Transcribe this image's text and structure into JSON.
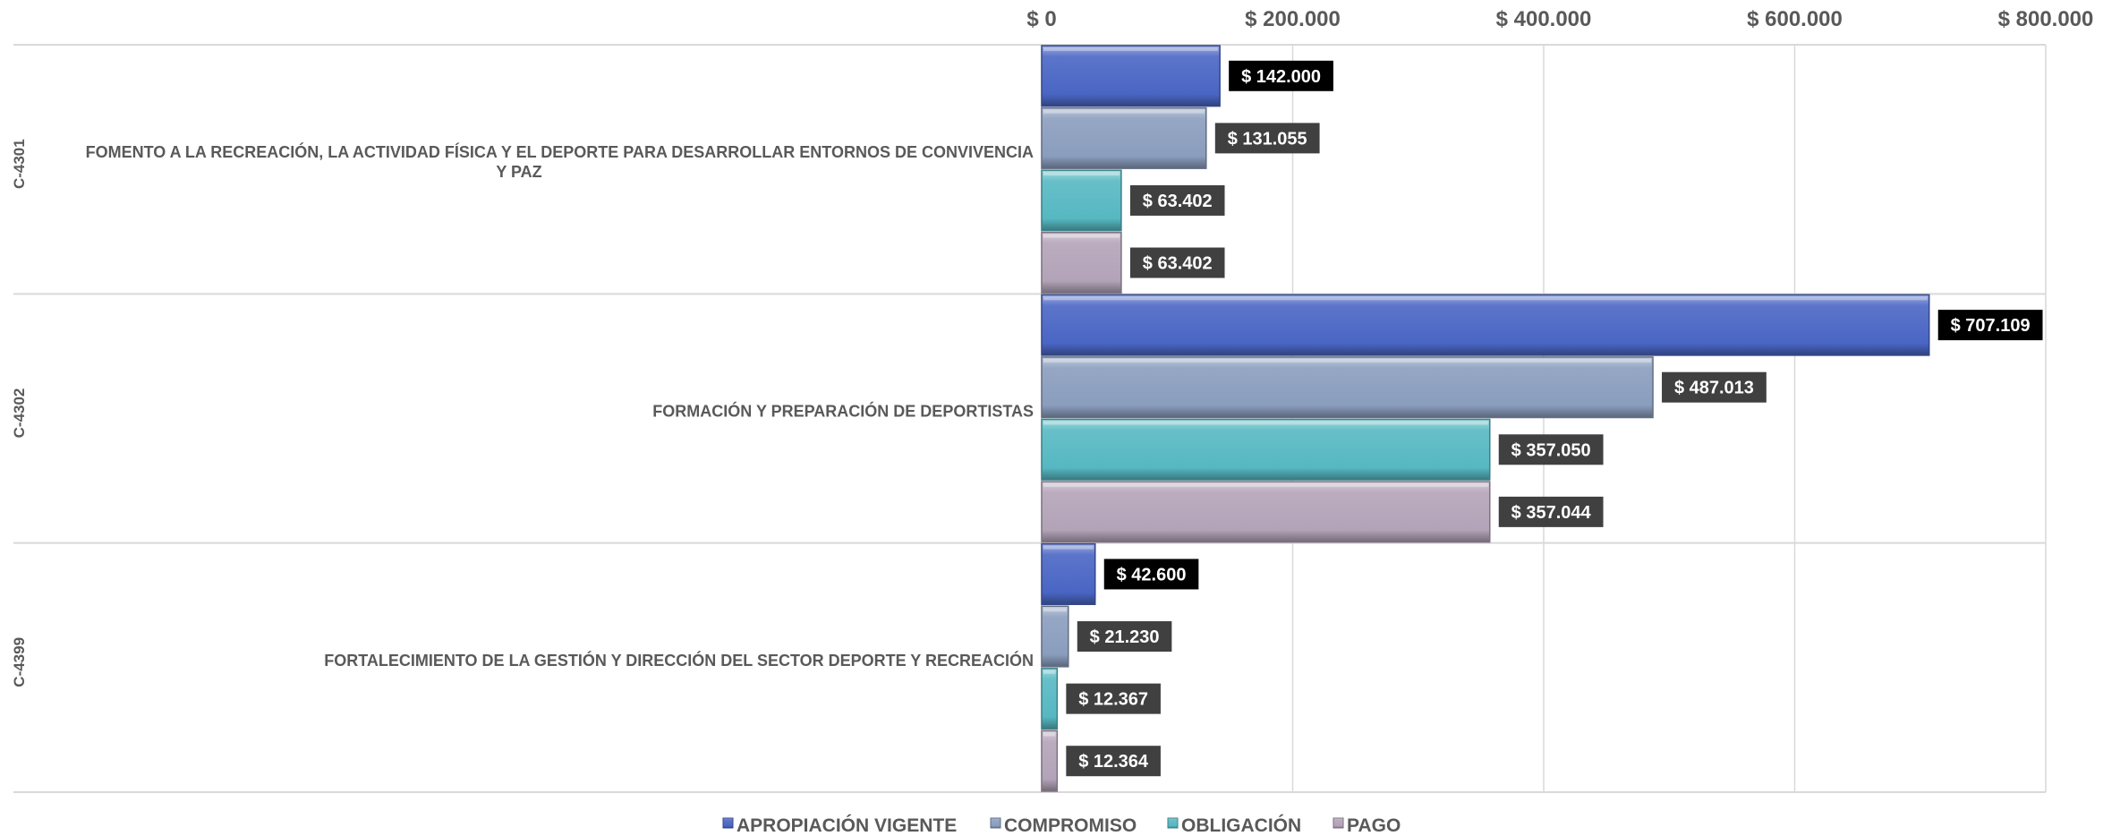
{
  "chart_data": {
    "type": "bar",
    "orientation": "horizontal",
    "xlim": [
      0,
      800000
    ],
    "x_ticks": [
      0,
      200000,
      400000,
      600000,
      800000
    ],
    "x_tick_labels": [
      "$ 0",
      "$ 200.000",
      "$ 400.000",
      "$ 600.000",
      "$ 800.000"
    ],
    "x_axis_position": "top",
    "grid": true,
    "legend_position": "bottom",
    "groups": [
      {
        "code": "C-4301",
        "label_lines": [
          "FOMENTO A LA RECREACIÓN, LA ACTIVIDAD FÍSICA Y EL DEPORTE PARA DESARROLLAR ENTORNOS DE CONVIVENCIA",
          "Y PAZ"
        ]
      },
      {
        "code": "C-4302",
        "label_lines": [
          "FORMACIÓN Y PREPARACIÓN DE DEPORTISTAS"
        ]
      },
      {
        "code": "C-4399",
        "label_lines": [
          "FORTALECIMIENTO DE LA GESTIÓN Y DIRECCIÓN DEL SECTOR DEPORTE Y RECREACIÓN"
        ]
      }
    ],
    "series": [
      {
        "name": "APROPIACIÓN VIGENTE",
        "color": "#4a66c4",
        "label_bg": "#000000",
        "values": [
          142000,
          707109,
          42600
        ],
        "data_labels": [
          "$ 142.000",
          "$ 707.109",
          "$ 42.600"
        ]
      },
      {
        "name": "COMPROMISO",
        "color": "#8a9dbd",
        "label_bg": "#404040",
        "values": [
          131055,
          487013,
          21230
        ],
        "data_labels": [
          "$ 131.055",
          "$ 487.013",
          "$ 21.230"
        ]
      },
      {
        "name": "OBLIGACIÓN",
        "color": "#56b8c2",
        "label_bg": "#404040",
        "values": [
          63402,
          357050,
          12367
        ],
        "data_labels": [
          "$ 63.402",
          "$ 357.050",
          "$ 12.367"
        ]
      },
      {
        "name": "PAGO",
        "color": "#b3a3b8",
        "label_bg": "#404040",
        "values": [
          63402,
          357044,
          12364
        ],
        "data_labels": [
          "$ 63.402",
          "$ 357.044",
          "$ 12.364"
        ]
      }
    ]
  }
}
